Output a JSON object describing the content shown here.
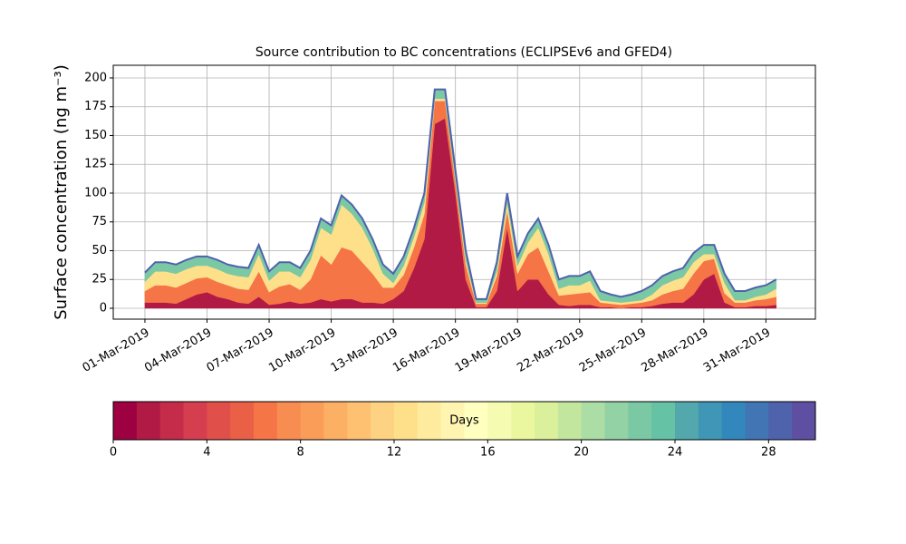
{
  "chart_data": {
    "type": "stacked_area",
    "title": "Source contribution to BC concentrations (ECLIPSEv6 and GFED4)",
    "y_label": "Surface concentration (ng m⁻³)",
    "x": [
      0,
      0.5,
      1,
      1.5,
      2,
      2.5,
      3,
      3.5,
      4,
      4.5,
      5,
      5.5,
      6,
      6.5,
      7,
      7.5,
      8,
      8.5,
      9,
      9.5,
      10,
      10.5,
      11,
      11.5,
      12,
      12.5,
      13,
      13.5,
      14,
      14.5,
      15,
      15.5,
      16,
      16.5,
      17,
      17.5,
      18,
      18.5,
      19,
      19.5,
      20,
      20.5,
      21,
      21.5,
      22,
      22.5,
      23,
      23.5,
      24,
      24.5,
      25,
      25.5,
      26,
      26.5,
      27,
      27.5,
      28,
      28.5,
      29,
      29.5,
      30,
      30.5
    ],
    "series": [
      {
        "color": "#b11a44",
        "values": [
          5,
          5,
          5,
          4,
          8,
          12,
          14,
          10,
          8,
          5,
          4,
          10,
          3,
          4,
          6,
          4,
          5,
          8,
          6,
          8,
          8,
          5,
          5,
          4,
          8,
          15,
          35,
          60,
          160,
          165,
          100,
          25,
          1,
          1,
          15,
          70,
          15,
          25,
          25,
          12,
          3,
          2,
          3,
          3,
          1,
          1,
          0,
          1,
          1,
          2,
          4,
          5,
          5,
          12,
          25,
          30,
          5,
          1,
          1,
          2,
          2,
          3
        ]
      },
      {
        "color": "#f57547",
        "values": [
          10,
          15,
          15,
          14,
          14,
          14,
          13,
          13,
          12,
          12,
          12,
          22,
          11,
          15,
          15,
          12,
          20,
          38,
          32,
          45,
          42,
          35,
          25,
          14,
          10,
          14,
          18,
          22,
          20,
          15,
          10,
          13,
          3,
          3,
          13,
          15,
          15,
          22,
          28,
          20,
          8,
          10,
          10,
          11,
          4,
          3,
          3,
          3,
          4,
          5,
          8,
          10,
          12,
          18,
          16,
          13,
          8,
          4,
          4,
          5,
          6,
          7
        ]
      },
      {
        "color": "#fee08b",
        "values": [
          8,
          12,
          12,
          12,
          12,
          11,
          10,
          11,
          10,
          11,
          11,
          15,
          10,
          13,
          11,
          11,
          17,
          24,
          26,
          37,
          32,
          30,
          22,
          12,
          4,
          8,
          9,
          10,
          2,
          2,
          2,
          4,
          1,
          1,
          4,
          7,
          7,
          10,
          17,
          15,
          6,
          8,
          7,
          10,
          2,
          2,
          2,
          2,
          2,
          5,
          8,
          9,
          10,
          10,
          6,
          4,
          9,
          2,
          2,
          3,
          4,
          7
        ]
      },
      {
        "color": "#7bc8a4",
        "values": [
          8,
          8,
          8,
          8,
          8,
          8,
          8,
          8,
          8,
          8,
          8,
          8,
          8,
          8,
          8,
          8,
          8,
          8,
          8,
          8,
          8,
          8,
          8,
          8,
          8,
          8,
          8,
          8,
          8,
          8,
          8,
          8,
          3,
          3,
          8,
          8,
          8,
          8,
          8,
          8,
          8,
          8,
          8,
          8,
          8,
          6,
          5,
          6,
          8,
          8,
          8,
          8,
          8,
          8,
          8,
          8,
          8,
          8,
          8,
          8,
          8,
          8
        ]
      }
    ],
    "edge_color": "#4f62ac",
    "xlim": [
      -1.53,
      32.39
    ],
    "xticks": [
      {
        "value": 0,
        "label": "01-Mar-2019"
      },
      {
        "value": 3,
        "label": "04-Mar-2019"
      },
      {
        "value": 6,
        "label": "07-Mar-2019"
      },
      {
        "value": 9,
        "label": "10-Mar-2019"
      },
      {
        "value": 12,
        "label": "13-Mar-2019"
      },
      {
        "value": 15,
        "label": "16-Mar-2019"
      },
      {
        "value": 18,
        "label": "19-Mar-2019"
      },
      {
        "value": 21,
        "label": "22-Mar-2019"
      },
      {
        "value": 24,
        "label": "25-Mar-2019"
      },
      {
        "value": 27,
        "label": "28-Mar-2019"
      },
      {
        "value": 30,
        "label": "31-Mar-2019"
      }
    ],
    "ylim": [
      -9.45,
      211
    ],
    "yticks": [
      0,
      25,
      50,
      75,
      100,
      125,
      150,
      175,
      200
    ],
    "grid": true,
    "colorbar": {
      "label": "Days",
      "lim": [
        0,
        30
      ],
      "ticks": [
        0,
        4,
        8,
        12,
        16,
        20,
        24,
        28
      ],
      "colors": [
        "#9e0142",
        "#b11a44",
        "#c42c4a",
        "#d53e4f",
        "#e04f4a",
        "#ea6047",
        "#f57547",
        "#f88d52",
        "#fa9d59",
        "#fcb064",
        "#fdc171",
        "#fdd282",
        "#fee08b",
        "#feeb9e",
        "#fff5b1",
        "#ffffbf",
        "#f6fbb2",
        "#eaf79e",
        "#dbf09b",
        "#c3e69f",
        "#abdda4",
        "#93d2a4",
        "#7bc8a4",
        "#66c2a5",
        "#52a8ac",
        "#3f96b7",
        "#3288bd",
        "#4175b4",
        "#4f62ac",
        "#5e4fa2"
      ]
    }
  }
}
